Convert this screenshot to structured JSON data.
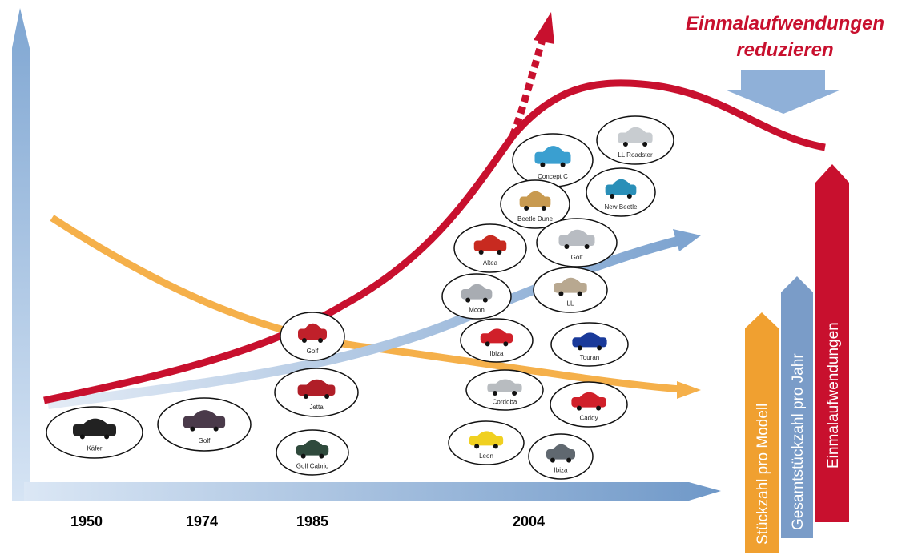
{
  "title": {
    "line1": "Einmalaufwendungen",
    "line2": "reduzieren"
  },
  "years": [
    "1950",
    "1974",
    "1985",
    "2004"
  ],
  "legend": [
    "Stückzahl pro Modell",
    "Gesamtstückzahl pro Jahr",
    "Einmalaufwendungen"
  ],
  "cars": [
    {
      "label": "Käfer",
      "color": "#222"
    },
    {
      "label": "Golf",
      "color": "#4a3a4a"
    },
    {
      "label": "Golf",
      "color": "#c0202a"
    },
    {
      "label": "Jetta",
      "color": "#b01e28"
    },
    {
      "label": "Golf Cabrio",
      "color": "#2f4a3c"
    },
    {
      "label": "Concept C",
      "color": "#3a9fd0"
    },
    {
      "label": "LL Roadster",
      "color": "#c8ccd0"
    },
    {
      "label": "Beetle Dune",
      "color": "#c89a50"
    },
    {
      "label": "New Beetle",
      "color": "#2a8fb8"
    },
    {
      "label": "Altea",
      "color": "#c82a20"
    },
    {
      "label": "Golf",
      "color": "#b8bcc2"
    },
    {
      "label": "Mcon",
      "color": "#a8acb2"
    },
    {
      "label": "LL",
      "color": "#b8a890"
    },
    {
      "label": "Ibiza",
      "color": "#d0202a"
    },
    {
      "label": "Touran",
      "color": "#1a3a9a"
    },
    {
      "label": "Cordoba",
      "color": "#b8bcc0"
    },
    {
      "label": "Caddy",
      "color": "#d0202a"
    },
    {
      "label": "Leon",
      "color": "#f0d020"
    },
    {
      "label": "Ibiza",
      "color": "#606870"
    }
  ]
}
